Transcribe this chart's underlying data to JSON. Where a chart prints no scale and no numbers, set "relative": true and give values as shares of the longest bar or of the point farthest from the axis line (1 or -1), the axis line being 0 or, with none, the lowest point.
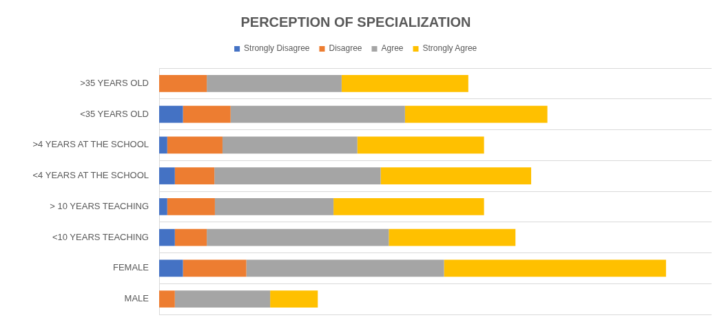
{
  "chart_data": {
    "type": "bar",
    "orientation": "horizontal",
    "stacked": true,
    "relative": true,
    "title": "PERCEPTION OF SPECIALIZATION",
    "categories": [
      ">35 YEARS OLD",
      "<35 YEARS OLD",
      ">4 YEARS AT THE SCHOOL",
      "<4 YEARS AT THE SCHOOL",
      "> 10 YEARS TEACHING",
      "<10 YEARS TEACHING",
      "FEMALE",
      "MALE"
    ],
    "series": [
      {
        "name": "Strongly Disagree",
        "color": "#4472c4",
        "values": [
          0,
          0.047,
          0.016,
          0.031,
          0.016,
          0.031,
          0.047,
          0
        ]
      },
      {
        "name": "Disagree",
        "color": "#ed7d31",
        "values": [
          0.094,
          0.094,
          0.109,
          0.078,
          0.094,
          0.063,
          0.125,
          0.031
        ]
      },
      {
        "name": "Agree",
        "color": "#a5a5a5",
        "values": [
          0.266,
          0.344,
          0.266,
          0.328,
          0.234,
          0.359,
          0.39,
          0.188
        ]
      },
      {
        "name": "Strongly Agree",
        "color": "#ffc000",
        "values": [
          0.25,
          0.281,
          0.25,
          0.297,
          0.297,
          0.25,
          0.438,
          0.094
        ]
      }
    ],
    "grid": "y",
    "legend": "top"
  }
}
